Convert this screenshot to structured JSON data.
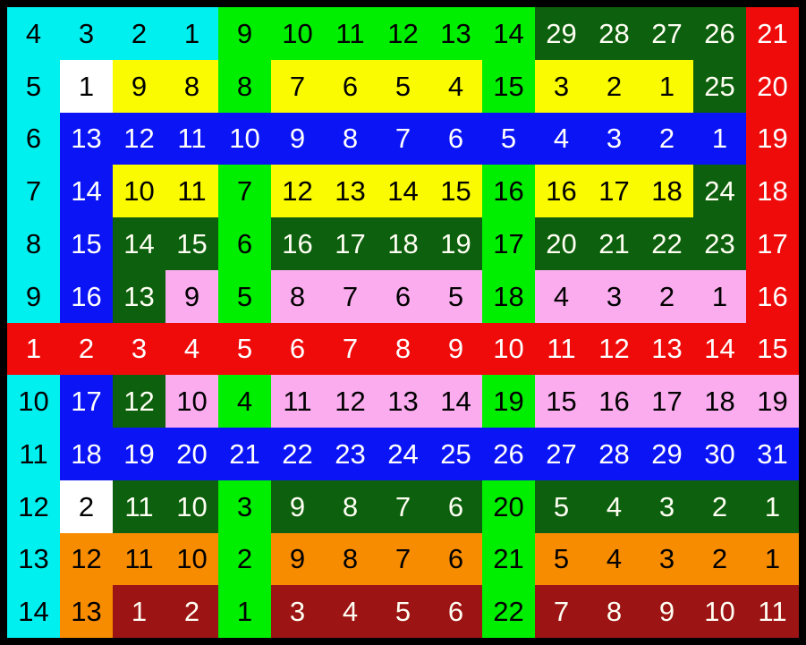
{
  "board": {
    "rows": 12,
    "cols": 15,
    "border_color": "#000000",
    "palette": {
      "cy": {
        "name": "cyan",
        "bg": "#00F0F0",
        "fg": "#000000"
      },
      "gr": {
        "name": "green",
        "bg": "#00EE00",
        "fg": "#000000"
      },
      "dg": {
        "name": "dark-green",
        "bg": "#0D600D",
        "fg": "#FFFFF4"
      },
      "bl": {
        "name": "blue",
        "bg": "#0A14F5",
        "fg": "#FFFFFF"
      },
      "ye": {
        "name": "yellow",
        "bg": "#FAFA00",
        "fg": "#000000"
      },
      "re": {
        "name": "red",
        "bg": "#F00B0B",
        "fg": "#FFFFFF"
      },
      "pk": {
        "name": "pink",
        "bg": "#FAACEE",
        "fg": "#000000"
      },
      "or": {
        "name": "orange",
        "bg": "#F78C00",
        "fg": "#000000"
      },
      "dr": {
        "name": "dark-red",
        "bg": "#9C1414",
        "fg": "#FFFFF4"
      },
      "wh": {
        "name": "white",
        "bg": "#FFFFFF",
        "fg": "#000000"
      }
    },
    "cells": [
      [
        "cy:4",
        "cy:3",
        "cy:2",
        "cy:1",
        "gr:9",
        "gr:10",
        "gr:11",
        "gr:12",
        "gr:13",
        "gr:14",
        "dg:29",
        "dg:28",
        "dg:27",
        "dg:26",
        "re:21"
      ],
      [
        "cy:5",
        "wh:1",
        "ye:9",
        "ye:8",
        "gr:8",
        "ye:7",
        "ye:6",
        "ye:5",
        "ye:4",
        "gr:15",
        "ye:3",
        "ye:2",
        "ye:1",
        "dg:25",
        "re:20"
      ],
      [
        "cy:6",
        "bl:13",
        "bl:12",
        "bl:11",
        "bl:10",
        "bl:9",
        "bl:8",
        "bl:7",
        "bl:6",
        "bl:5",
        "bl:4",
        "bl:3",
        "bl:2",
        "bl:1",
        "re:19"
      ],
      [
        "cy:7",
        "bl:14",
        "ye:10",
        "ye:11",
        "gr:7",
        "ye:12",
        "ye:13",
        "ye:14",
        "ye:15",
        "gr:16",
        "ye:16",
        "ye:17",
        "ye:18",
        "dg:24",
        "re:18"
      ],
      [
        "cy:8",
        "bl:15",
        "dg:14",
        "dg:15",
        "gr:6",
        "dg:16",
        "dg:17",
        "dg:18",
        "dg:19",
        "gr:17",
        "dg:20",
        "dg:21",
        "dg:22",
        "dg:23",
        "re:17"
      ],
      [
        "cy:9",
        "bl:16",
        "dg:13",
        "pk:9",
        "gr:5",
        "pk:8",
        "pk:7",
        "pk:6",
        "pk:5",
        "gr:18",
        "pk:4",
        "pk:3",
        "pk:2",
        "pk:1",
        "re:16"
      ],
      [
        "re:1",
        "re:2",
        "re:3",
        "re:4",
        "re:5",
        "re:6",
        "re:7",
        "re:8",
        "re:9",
        "re:10",
        "re:11",
        "re:12",
        "re:13",
        "re:14",
        "re:15"
      ],
      [
        "cy:10",
        "bl:17",
        "dg:12",
        "pk:10",
        "gr:4",
        "pk:11",
        "pk:12",
        "pk:13",
        "pk:14",
        "gr:19",
        "pk:15",
        "pk:16",
        "pk:17",
        "pk:18",
        "pk:19"
      ],
      [
        "cy:11",
        "bl:18",
        "bl:19",
        "bl:20",
        "bl:21",
        "bl:22",
        "bl:23",
        "bl:24",
        "bl:25",
        "bl:26",
        "bl:27",
        "bl:28",
        "bl:29",
        "bl:30",
        "bl:31"
      ],
      [
        "cy:12",
        "wh:2",
        "dg:11",
        "dg:10",
        "gr:3",
        "dg:9",
        "dg:8",
        "dg:7",
        "dg:6",
        "gr:20",
        "dg:5",
        "dg:4",
        "dg:3",
        "dg:2",
        "dg:1"
      ],
      [
        "cy:13",
        "or:12",
        "or:11",
        "or:10",
        "gr:2",
        "or:9",
        "or:8",
        "or:7",
        "or:6",
        "gr:21",
        "or:5",
        "or:4",
        "or:3",
        "or:2",
        "or:1"
      ],
      [
        "cy:14",
        "or:13",
        "dr:1",
        "dr:2",
        "gr:1",
        "dr:3",
        "dr:4",
        "dr:5",
        "dr:6",
        "gr:22",
        "dr:7",
        "dr:8",
        "dr:9",
        "dr:10",
        "dr:11"
      ]
    ]
  }
}
